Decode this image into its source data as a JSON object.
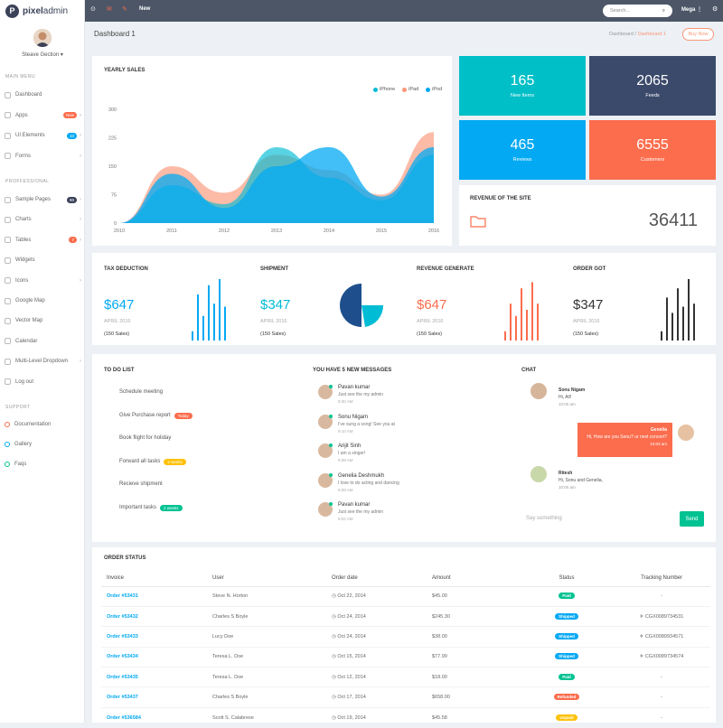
{
  "brand": {
    "letter": "P",
    "bold": "pixel",
    "light": "admin"
  },
  "user": {
    "name": "Steave Gection"
  },
  "sidebar": {
    "main_title": "MAIN MENU",
    "main": [
      {
        "label": "Dashboard"
      },
      {
        "label": "Apps",
        "badge": "New",
        "badge_color": "#fb6d4d",
        "chev": "›"
      },
      {
        "label": "UI Elements",
        "badge": "10",
        "badge_color": "#03a9f3",
        "chev": "›"
      },
      {
        "label": "Forms",
        "chev": "›"
      }
    ],
    "pro_title": "PROFFESSIONAL",
    "pro": [
      {
        "label": "Sample Pages",
        "badge": "90",
        "badge_color": "#3b4258",
        "chev": "›"
      },
      {
        "label": "Charts",
        "chev": "›"
      },
      {
        "label": "Tables",
        "badge": "7",
        "badge_color": "#fb6d4d",
        "chev": "›"
      },
      {
        "label": "Widgets"
      },
      {
        "label": "Icons",
        "chev": "›"
      },
      {
        "label": "Google Map"
      },
      {
        "label": "Vector Map"
      },
      {
        "label": "Calendar"
      },
      {
        "label": "Multi-Level Dropdown",
        "chev": "›"
      },
      {
        "label": "Log out"
      }
    ],
    "support_title": "SUPPORT",
    "support": [
      {
        "label": "Documentation",
        "color": "#fb6d4d"
      },
      {
        "label": "Gallery",
        "color": "#03a9f3"
      },
      {
        "label": "Faqs",
        "color": "#00c292"
      }
    ]
  },
  "topbar": {
    "new_label": "New",
    "search_placeholder": "Search...",
    "mega_label": "Mega"
  },
  "page": {
    "title": "Dashboard 1",
    "crumb_home": "Dashboard",
    "crumb_sep": "/",
    "crumb_active": "Dashboard 1",
    "buy_now": "Buy Now"
  },
  "chart_data": {
    "type": "area",
    "title": "YEARLY SALES",
    "x": [
      "2010",
      "2011",
      "2012",
      "2013",
      "2014",
      "2015",
      "2016"
    ],
    "yticks": [
      "300",
      "225",
      "150",
      "75",
      "0"
    ],
    "ylim": [
      0,
      300
    ],
    "series": [
      {
        "name": "iPhone",
        "color": "#00bcd4",
        "values": [
          0,
          100,
          50,
          200,
          120,
          60,
          180
        ]
      },
      {
        "name": "iPad",
        "color": "#fb9678",
        "values": [
          0,
          150,
          80,
          180,
          140,
          75,
          240
        ]
      },
      {
        "name": "iPod",
        "color": "#03a9f3",
        "values": [
          0,
          130,
          40,
          150,
          200,
          70,
          200
        ]
      }
    ]
  },
  "stats": [
    {
      "value": "165",
      "label": "New Items",
      "color": "#00bfc7"
    },
    {
      "value": "2065",
      "label": "Feeds",
      "color": "#3b4a6b"
    },
    {
      "value": "465",
      "label": "Reviews",
      "color": "#03a9f3"
    },
    {
      "value": "6555",
      "label": "Customers",
      "color": "#fb6d4d"
    }
  ],
  "revenue": {
    "title": "REVENUE OF THE SITE",
    "value": "36411"
  },
  "mini": [
    {
      "title": "TAX DEDUCTION",
      "value": "$647",
      "date": "APRIL 2016",
      "sales": "(150 Sales)",
      "color": "#03a9f3",
      "bars": [
        0.15,
        0.75,
        0.4,
        0.9,
        0.6,
        1.0,
        0.55
      ]
    },
    {
      "title": "SHIPMENT",
      "value": "$347",
      "date": "APRIL 2016",
      "sales": "(150 Sales)",
      "color": "#00bcd4"
    },
    {
      "title": "REVENUE GENERATE",
      "value": "$647",
      "date": "APRIL 2016",
      "sales": "(150 Sales)",
      "color": "#fb6d4d",
      "bars": [
        0.15,
        0.6,
        0.4,
        0.85,
        0.5,
        0.95,
        0.6
      ]
    },
    {
      "title": "ORDER GOT",
      "value": "$347",
      "date": "APRIL 2016",
      "sales": "(150 Sales)",
      "color": "#333333",
      "bars": [
        0.15,
        0.7,
        0.45,
        0.85,
        0.55,
        1.0,
        0.6
      ]
    }
  ],
  "todo": {
    "title": "TO DO LIST",
    "items": [
      {
        "text": "Schedule meeting"
      },
      {
        "text": "Give Purchase report",
        "badge": "Today",
        "badge_color": "#fb6d4d"
      },
      {
        "text": "Book flight for holiday"
      },
      {
        "text": "Forward all tasks",
        "badge": "2 weeks",
        "badge_color": "#fec107"
      },
      {
        "text": "Recieve shipment"
      },
      {
        "text": "Important tasks",
        "badge": "2 weeks",
        "badge_color": "#00c292"
      }
    ]
  },
  "messages": {
    "title": "YOU HAVE 5 NEW MESSAGES",
    "items": [
      {
        "name": "Pavan kumar",
        "text": "Just see the my admin",
        "time": "9:30 AM"
      },
      {
        "name": "Sonu Nigam",
        "text": "I've sung a song! See you at",
        "time": "9:10 AM"
      },
      {
        "name": "Arijit Sinh",
        "text": "I am a singer!",
        "time": "9:08 AM"
      },
      {
        "name": "Genelia Deshmukh",
        "text": "I love to do acting and dancing",
        "time": "9:08 AM"
      },
      {
        "name": "Pavan kumar",
        "text": "Just see the my admin",
        "time": "9:02 AM"
      }
    ]
  },
  "chat": {
    "title": "CHAT",
    "m1": {
      "name": "Sonu Nigam",
      "text": "Hi, All!",
      "time": "10:00 am"
    },
    "m2": {
      "name": "Genelia",
      "text": "Hi, How are you Sonu? ur next concert?",
      "time": "10:03 am"
    },
    "m3": {
      "name": "Ritesh",
      "text": "Hi, Sonu and Genelia,",
      "time": "10:00 am"
    },
    "placeholder": "Say something",
    "send": "Send"
  },
  "orders": {
    "title": "ORDER STATUS",
    "headers": [
      "Invoice",
      "User",
      "Order date",
      "Amount",
      "Status",
      "Tracking Number"
    ],
    "rows": [
      {
        "inv": "Order #53431",
        "user": "Steve N. Horton",
        "date": "Oct 22, 2014",
        "amt": "$45.00",
        "status": "Paid",
        "color": "#00c292",
        "track": "-"
      },
      {
        "inv": "Order #53432",
        "user": "Charles S Boyle",
        "date": "Oct 24, 2014",
        "amt": "$245.30",
        "status": "Shipped",
        "color": "#03a9f3",
        "track": "CGX0089734531"
      },
      {
        "inv": "Order #53433",
        "user": "Lucy Doe",
        "date": "Oct 24, 2014",
        "amt": "$38.00",
        "status": "Shipped",
        "color": "#03a9f3",
        "track": "CGX0089934571"
      },
      {
        "inv": "Order #53434",
        "user": "Teresa L. Doe",
        "date": "Oct 15, 2014",
        "amt": "$77.99",
        "status": "Shipped",
        "color": "#03a9f3",
        "track": "CGX0089734574"
      },
      {
        "inv": "Order #53435",
        "user": "Teresa L. Doe",
        "date": "Oct 12, 2014",
        "amt": "$18.00",
        "status": "Paid",
        "color": "#00c292",
        "track": "-"
      },
      {
        "inv": "Order #53437",
        "user": "Charles S Boyle",
        "date": "Oct 17, 2014",
        "amt": "$658.00",
        "status": "Refunded",
        "color": "#fb6d4d",
        "track": "-"
      },
      {
        "inv": "Order #536584",
        "user": "Scott S. Calabrese",
        "date": "Oct 19, 2014",
        "amt": "$45.58",
        "status": "Unpaid",
        "color": "#fec107",
        "track": "-"
      }
    ]
  }
}
